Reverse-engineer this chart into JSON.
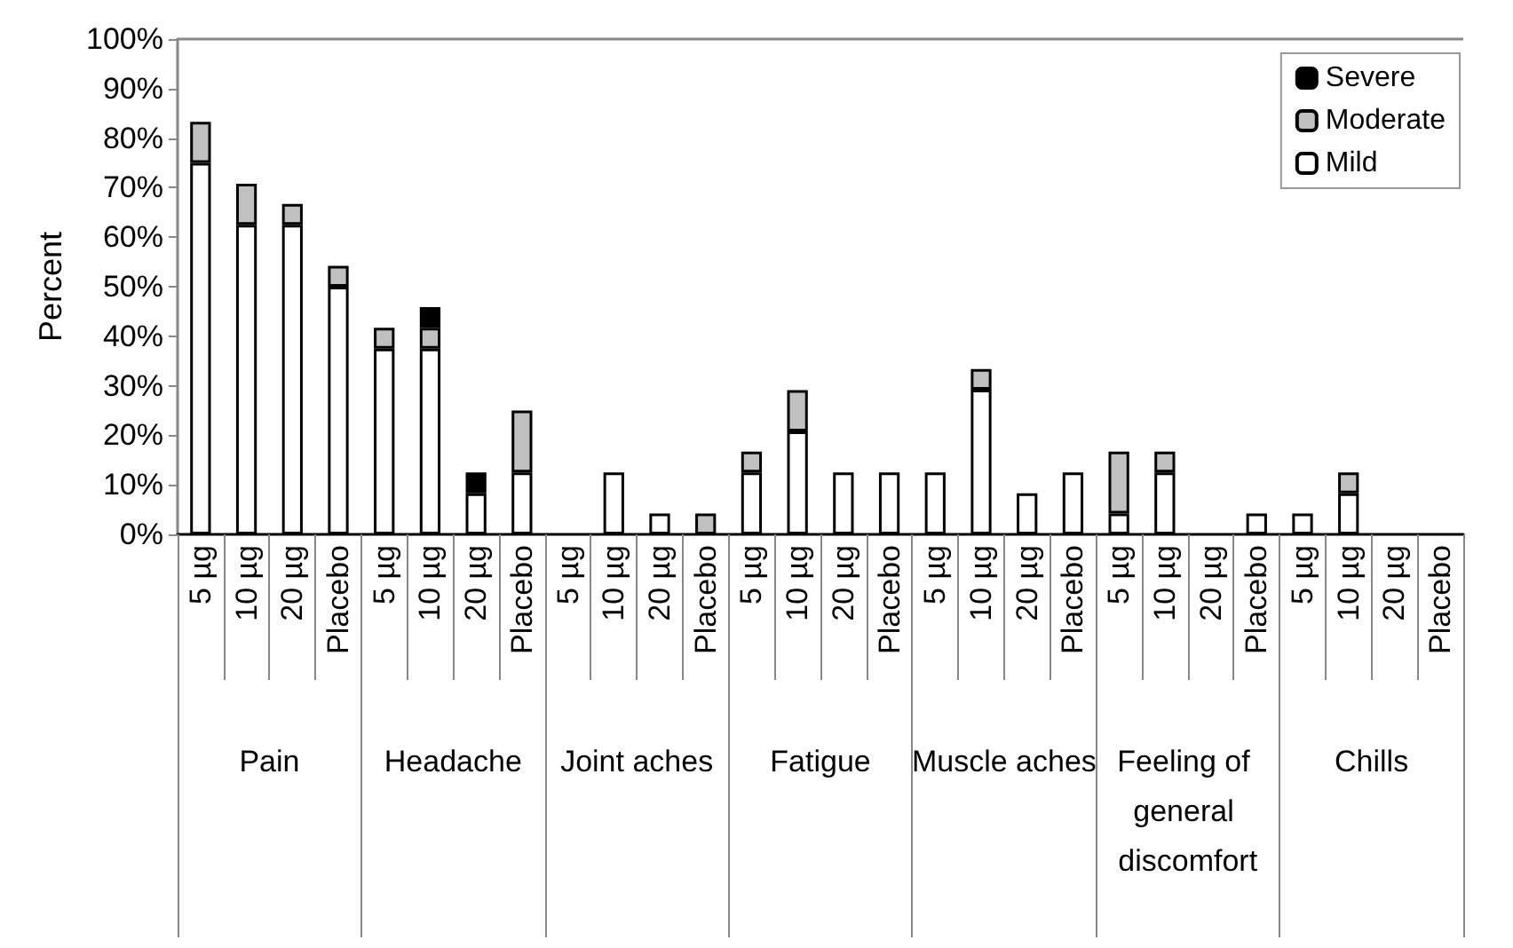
{
  "chart_data": {
    "type": "bar",
    "stacked": true,
    "ylabel": "Percent",
    "legend": "top right",
    "grid": false,
    "categories": [
      "5 µg",
      "10 µg",
      "20 µg",
      "Placebo",
      "5 µg",
      "10 µg",
      "20 µg",
      "Placebo",
      "5 µg",
      "10 µg",
      "20 µg",
      "Placebo",
      "5 µg",
      "10 µg",
      "20 µg",
      "Placebo",
      "5 µg",
      "10 µg",
      "20 µg",
      "Placebo",
      "5 µg",
      "10 µg",
      "20 µg",
      "Placebo",
      "5 µg",
      "10 µg",
      "20 µg",
      "Placebo"
    ],
    "annotations": [
      "Pain",
      "Headache",
      "Joint aches",
      "Fatigue",
      "Muscle aches",
      "Feeling of general discomfort",
      "Chills"
    ],
    "ylim": [
      0,
      100
    ],
    "yticks": [
      {
        "value": 0,
        "label": "0%"
      },
      {
        "value": 10,
        "label": "10%"
      },
      {
        "value": 20,
        "label": "20%"
      },
      {
        "value": 30,
        "label": "30%"
      },
      {
        "value": 40,
        "label": "40%"
      },
      {
        "value": 50,
        "label": "50%"
      },
      {
        "value": 60,
        "label": "60%"
      },
      {
        "value": 70,
        "label": "70%"
      },
      {
        "value": 80,
        "label": "80%"
      },
      {
        "value": 90,
        "label": "90%"
      },
      {
        "value": 100,
        "label": "100%"
      }
    ],
    "series": [
      {
        "name": "Mild",
        "color": "#ffffff",
        "values": [
          75,
          62.5,
          62.5,
          50,
          37.5,
          37.5,
          8.3,
          12.5,
          null,
          12.5,
          4.2,
          null,
          12.5,
          20.8,
          12.5,
          12.5,
          12.5,
          29.2,
          8.3,
          12.5,
          4.2,
          12.5,
          null,
          4.2,
          4.2,
          8.3,
          null,
          null
        ]
      },
      {
        "name": "Moderate",
        "color": "#c0c0c0",
        "values": [
          8.3,
          8.3,
          4.2,
          4.2,
          4.2,
          4.2,
          null,
          12.5,
          null,
          null,
          null,
          4.2,
          4.2,
          8.3,
          null,
          null,
          null,
          4.2,
          null,
          null,
          12.5,
          4.2,
          null,
          null,
          null,
          4.2,
          null,
          null
        ]
      },
      {
        "name": "Severe",
        "color": "#000000",
        "values": [
          null,
          null,
          null,
          null,
          null,
          4.2,
          4.2,
          null,
          null,
          null,
          null,
          null,
          null,
          null,
          null,
          null,
          null,
          null,
          null,
          null,
          null,
          null,
          null,
          null,
          null,
          null,
          null,
          null
        ]
      }
    ]
  }
}
